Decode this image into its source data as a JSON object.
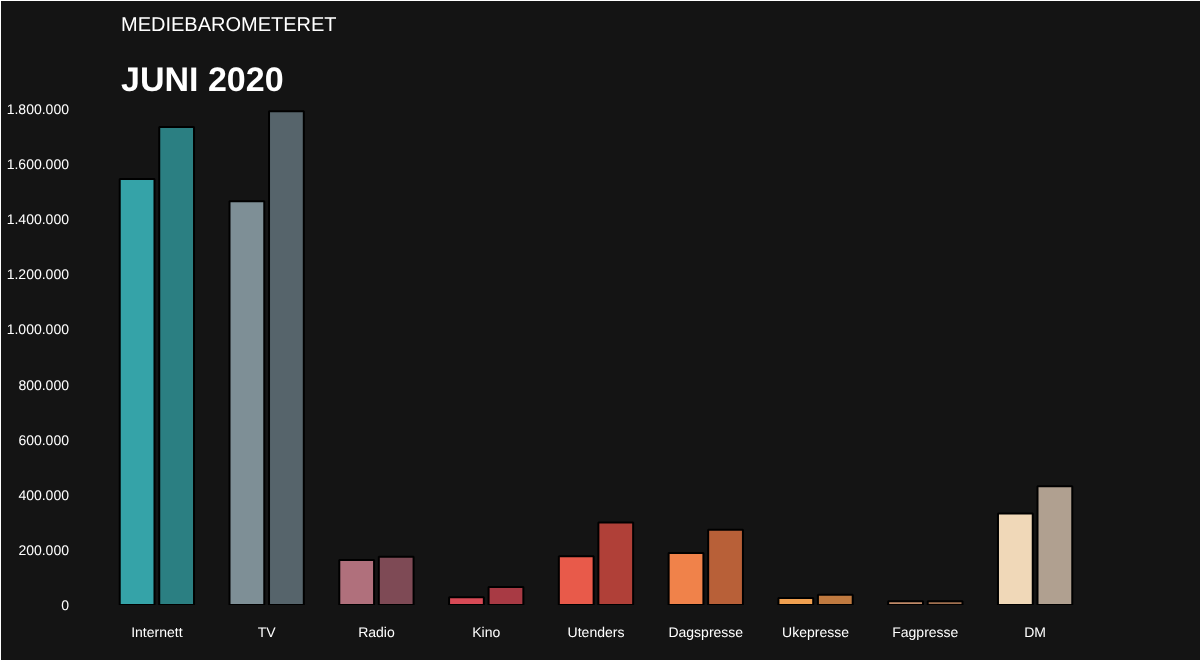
{
  "chart_data": {
    "type": "bar",
    "title": "MEDIEBAROMETERET",
    "subtitle": "JUNI 2020",
    "categories": [
      "Internett",
      "TV",
      "Radio",
      "Kino",
      "Utenders",
      "Dagspresse",
      "Ukepresse",
      "Fagpresse",
      "DM"
    ],
    "series": [
      {
        "colors": [
          "#35a3a8",
          "#7e8f96",
          "#b0707c",
          "#d84a56",
          "#e85a4a",
          "#f0824a",
          "#f0a050",
          "#c08a68",
          "#f0d8b8"
        ],
        "values": [
          1546000,
          1465000,
          163000,
          28000,
          177000,
          189000,
          25000,
          14000,
          332000
        ]
      },
      {
        "colors": [
          "#2b7f82",
          "#56646b",
          "#7e4a55",
          "#a83a44",
          "#b04038",
          "#b86038",
          "#c07a40",
          "#a07050",
          "#b0a090"
        ],
        "values": [
          1735000,
          1792000,
          175000,
          65000,
          299000,
          273000,
          37000,
          14000,
          431000
        ]
      }
    ],
    "ylim": [
      0,
      1800000
    ],
    "yticks": [
      {
        "value": 0,
        "label": "0"
      },
      {
        "value": 200000,
        "label": "200.000"
      },
      {
        "value": 400000,
        "label": "400.000"
      },
      {
        "value": 600000,
        "label": "600.000"
      },
      {
        "value": 800000,
        "label": "800.000"
      },
      {
        "value": 1000000,
        "label": "1.000.000"
      },
      {
        "value": 1200000,
        "label": "1.200.000"
      },
      {
        "value": 1400000,
        "label": "1.400.000"
      },
      {
        "value": 1600000,
        "label": "1.600.000"
      },
      {
        "value": 1800000,
        "label": "1.800.000"
      }
    ],
    "grid": false
  }
}
